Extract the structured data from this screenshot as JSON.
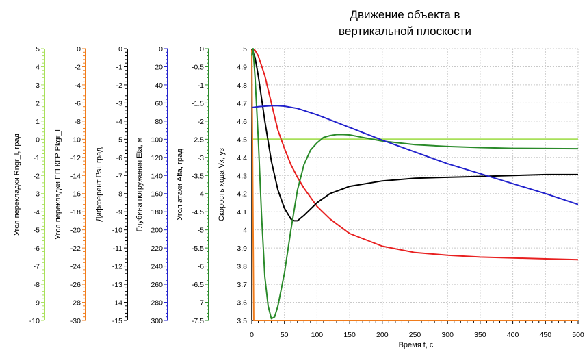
{
  "colors": {
    "rudder_a": "#a8e05a",
    "rudder_b": "#f07c1c",
    "psi": "#000000",
    "depth": "#2222cc",
    "alfa": "#2a8a2a",
    "speed": "#000000",
    "red": "#e82020",
    "grid": "#c8c8c8"
  },
  "chart_data": {
    "type": "line",
    "title": [
      "Движение объекта в",
      "вертикальной плоскости"
    ],
    "xlabel": "Время t, с",
    "xlim": [
      0,
      500
    ],
    "x_ticks": [
      0,
      50,
      100,
      150,
      200,
      250,
      300,
      350,
      400,
      450,
      500
    ],
    "grid": true,
    "axes": [
      {
        "id": "rudder_a",
        "label": "Угол перекладки Rngr_l, град",
        "min": -10,
        "max": 5,
        "color_key": "rudder_a",
        "ticks": [
          5,
          4,
          3,
          2,
          1,
          0,
          -1,
          -2,
          -3,
          -4,
          -5,
          -6,
          -7,
          -8,
          -9,
          -10
        ]
      },
      {
        "id": "rudder_b",
        "label": "Угол перекладки ПП КГР Pkgr_l",
        "min": -30,
        "max": 0,
        "color_key": "rudder_b",
        "ticks": [
          0,
          -2,
          -4,
          -6,
          -8,
          -10,
          -12,
          -14,
          -16,
          -18,
          -20,
          -22,
          -24,
          -26,
          -28,
          -30
        ]
      },
      {
        "id": "psi",
        "label": "Дифферент Psi, град",
        "min": -15,
        "max": 0,
        "color_key": "psi",
        "ticks": [
          0,
          -1,
          -2,
          -3,
          -4,
          -5,
          -6,
          -7,
          -8,
          -9,
          -10,
          -11,
          -12,
          -13,
          -14,
          -15
        ]
      },
      {
        "id": "depth",
        "label": "Глубина погружения Eta, м",
        "min": 0,
        "max": 300,
        "inverted": true,
        "color_key": "depth",
        "ticks": [
          0,
          20,
          40,
          60,
          80,
          100,
          120,
          140,
          160,
          180,
          200,
          220,
          240,
          260,
          280,
          300
        ]
      },
      {
        "id": "alfa",
        "label": "Угол атаки Alfa, град",
        "min": -7.5,
        "max": 0,
        "color_key": "alfa",
        "ticks": [
          0,
          -0.5,
          -1,
          -1.5,
          -2,
          -2.5,
          -3,
          -3.5,
          -4,
          -4.5,
          -5,
          -5.5,
          -6,
          -6.5,
          -7,
          -7.5
        ]
      },
      {
        "id": "speed",
        "label": "Скорость хода Vx, уз",
        "min": 3.5,
        "max": 5,
        "color_key": "speed",
        "ticks": [
          5,
          4.9,
          4.8,
          4.7,
          4.6,
          4.5,
          4.4,
          4.3,
          4.2,
          4.1,
          4,
          3.9,
          3.8,
          3.7,
          3.6,
          3.5
        ]
      }
    ],
    "series": [
      {
        "axis": "rudder_a",
        "color_key": "rudder_a",
        "x": [
          0,
          500
        ],
        "y": [
          0,
          0
        ]
      },
      {
        "axis": "rudder_b",
        "color_key": "rudder_b",
        "x": [
          0,
          3,
          500
        ],
        "y": [
          0,
          -30,
          -30
        ]
      },
      {
        "axis": "speed",
        "color_key": "red",
        "x": [
          0,
          5,
          10,
          20,
          30,
          40,
          50,
          60,
          70,
          80,
          100,
          120,
          150,
          200,
          250,
          300,
          350,
          400,
          450,
          500
        ],
        "y": [
          5.0,
          4.99,
          4.96,
          4.85,
          4.7,
          4.55,
          4.45,
          4.36,
          4.29,
          4.23,
          4.13,
          4.06,
          3.98,
          3.91,
          3.875,
          3.86,
          3.85,
          3.845,
          3.84,
          3.835
        ]
      },
      {
        "axis": "speed",
        "color_key": "speed",
        "x": [
          0,
          5,
          10,
          20,
          30,
          40,
          50,
          60,
          65,
          70,
          80,
          100,
          120,
          150,
          200,
          250,
          300,
          350,
          400,
          450,
          500
        ],
        "y": [
          5.0,
          4.95,
          4.85,
          4.6,
          4.38,
          4.22,
          4.12,
          4.06,
          4.05,
          4.05,
          4.08,
          4.15,
          4.2,
          4.24,
          4.27,
          4.285,
          4.29,
          4.295,
          4.3,
          4.305,
          4.305
        ]
      },
      {
        "axis": "alfa",
        "color_key": "alfa",
        "x": [
          0,
          2,
          5,
          10,
          15,
          20,
          25,
          30,
          35,
          40,
          50,
          60,
          70,
          80,
          90,
          100,
          110,
          120,
          130,
          140,
          150,
          170,
          200,
          250,
          300,
          350,
          400,
          500
        ],
        "y": [
          -0.2,
          0,
          -0.8,
          -2.5,
          -4.6,
          -6.3,
          -7.1,
          -7.45,
          -7.4,
          -7.1,
          -6.2,
          -5.0,
          -3.9,
          -3.2,
          -2.8,
          -2.6,
          -2.45,
          -2.4,
          -2.37,
          -2.37,
          -2.38,
          -2.45,
          -2.55,
          -2.65,
          -2.7,
          -2.73,
          -2.75,
          -2.76
        ]
      },
      {
        "axis": "depth",
        "color_key": "depth",
        "x": [
          0,
          10,
          20,
          30,
          40,
          50,
          70,
          100,
          150,
          200,
          250,
          300,
          350,
          400,
          450,
          500
        ],
        "y": [
          65,
          64,
          63.5,
          63,
          63,
          63.5,
          66,
          73,
          87,
          101,
          114,
          127,
          138,
          149,
          160,
          172
        ]
      }
    ]
  }
}
